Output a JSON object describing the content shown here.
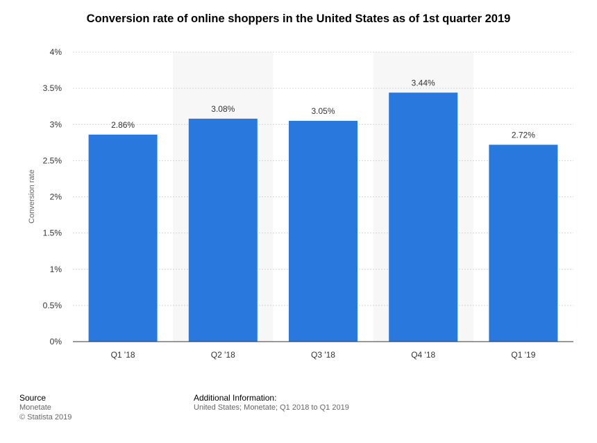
{
  "chart_data": {
    "type": "bar",
    "title": "Conversion rate of online shoppers in the United States as of 1st quarter 2019",
    "xlabel": "",
    "ylabel": "Conversion rate",
    "categories": [
      "Q1 '18",
      "Q2 '18",
      "Q3 '18",
      "Q4 '18",
      "Q1 '19"
    ],
    "values": [
      2.86,
      3.08,
      3.05,
      3.44,
      2.72
    ],
    "value_labels": [
      "2.86%",
      "3.08%",
      "3.05%",
      "3.44%",
      "2.72%"
    ],
    "ylim": [
      0,
      4
    ],
    "yticks": [
      0,
      0.5,
      1,
      1.5,
      2,
      2.5,
      3,
      3.5,
      4
    ],
    "ytick_labels": [
      "0%",
      "0.5%",
      "1%",
      "1.5%",
      "2%",
      "2.5%",
      "3%",
      "3.5%",
      "4%"
    ],
    "grid": true,
    "legend": "none",
    "bar_color": "#2878de",
    "alt_band_color": "#f7f7f7"
  },
  "footer": {
    "source_heading": "Source",
    "source_lines": [
      "Monetate",
      "© Statista 2019"
    ],
    "info_heading": "Additional Information:",
    "info_lines": [
      "United States; Monetate; Q1 2018 to Q1 2019"
    ]
  }
}
